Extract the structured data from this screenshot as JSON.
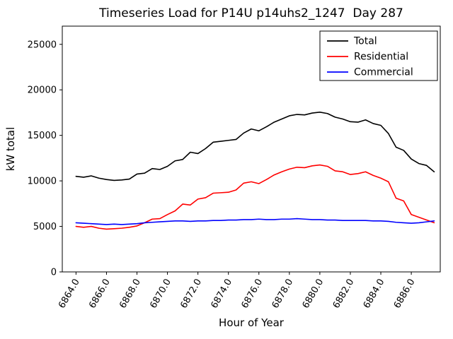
{
  "chart_data": {
    "type": "line",
    "title": "Timeseries Load for P14U p14uhs2_1247  Day 287",
    "xlabel": "Hour of Year",
    "ylabel": "kW total",
    "xlim": [
      6863.1,
      6887.9
    ],
    "ylim": [
      0,
      27000
    ],
    "grid": false,
    "xticks": [
      6864,
      6866,
      6868,
      6870,
      6872,
      6874,
      6876,
      6878,
      6880,
      6882,
      6884,
      6886
    ],
    "xtick_labels": [
      "6864.0",
      "6866.0",
      "6868.0",
      "6870.0",
      "6872.0",
      "6874.0",
      "6876.0",
      "6878.0",
      "6880.0",
      "6882.0",
      "6884.0",
      "6886.0"
    ],
    "yticks": [
      0,
      5000,
      10000,
      15000,
      20000,
      25000
    ],
    "ytick_labels": [
      "0",
      "5000",
      "10000",
      "15000",
      "20000",
      "25000"
    ],
    "legend": {
      "position": "upper right",
      "entries": [
        "Total",
        "Residential",
        "Commercial"
      ]
    },
    "x": [
      6864.0,
      6864.5,
      6865.0,
      6865.5,
      6866.0,
      6866.5,
      6867.0,
      6867.5,
      6868.0,
      6868.5,
      6869.0,
      6869.5,
      6870.0,
      6870.5,
      6871.0,
      6871.5,
      6872.0,
      6872.5,
      6873.0,
      6873.5,
      6874.0,
      6874.5,
      6875.0,
      6875.5,
      6876.0,
      6876.5,
      6877.0,
      6877.5,
      6878.0,
      6878.5,
      6879.0,
      6879.5,
      6880.0,
      6880.5,
      6881.0,
      6881.5,
      6882.0,
      6882.5,
      6883.0,
      6883.5,
      6884.0,
      6884.5,
      6885.0,
      6885.5,
      6886.0,
      6886.5,
      6887.0,
      6887.5
    ],
    "series": [
      {
        "name": "Total",
        "color": "#000000",
        "values": [
          10500,
          10400,
          10550,
          10300,
          10150,
          10050,
          10100,
          10200,
          10750,
          10850,
          11350,
          11250,
          11600,
          12200,
          12350,
          13150,
          13000,
          13550,
          14250,
          14350,
          14450,
          14550,
          15250,
          15700,
          15500,
          15950,
          16450,
          16800,
          17150,
          17300,
          17250,
          17450,
          17550,
          17400,
          17000,
          16800,
          16500,
          16450,
          16700,
          16300,
          16100,
          15200,
          13700,
          13350,
          12400,
          11900,
          11700,
          11000
        ]
      },
      {
        "name": "Residential",
        "color": "#ff0000",
        "values": [
          5000,
          4900,
          5000,
          4800,
          4700,
          4750,
          4800,
          4900,
          5050,
          5400,
          5800,
          5850,
          6300,
          6700,
          7450,
          7350,
          8000,
          8150,
          8650,
          8700,
          8750,
          9000,
          9750,
          9900,
          9700,
          10150,
          10650,
          11000,
          11300,
          11500,
          11450,
          11650,
          11750,
          11600,
          11100,
          11000,
          10700,
          10800,
          11000,
          10600,
          10300,
          9900,
          8100,
          7800,
          6300,
          6000,
          5700,
          5400
        ]
      },
      {
        "name": "Commercial",
        "color": "#0000ff",
        "values": [
          5400,
          5350,
          5300,
          5250,
          5200,
          5250,
          5200,
          5250,
          5300,
          5400,
          5450,
          5500,
          5550,
          5600,
          5600,
          5550,
          5600,
          5600,
          5650,
          5650,
          5700,
          5700,
          5750,
          5750,
          5800,
          5750,
          5750,
          5800,
          5800,
          5850,
          5800,
          5750,
          5750,
          5700,
          5700,
          5650,
          5650,
          5650,
          5650,
          5600,
          5600,
          5550,
          5450,
          5400,
          5350,
          5400,
          5500,
          5600
        ]
      }
    ]
  }
}
